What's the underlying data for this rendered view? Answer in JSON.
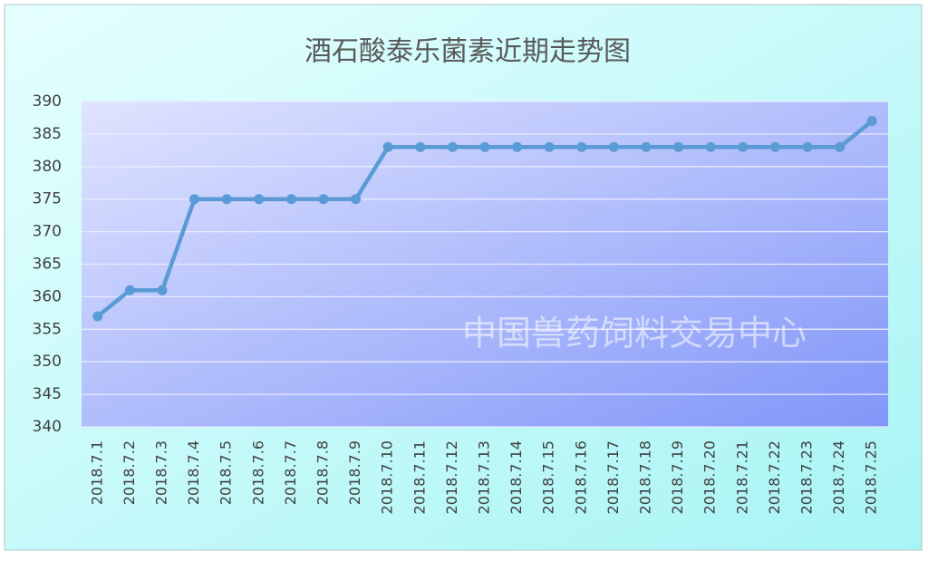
{
  "chart_data": {
    "type": "line",
    "title": "酒石酸泰乐菌素近期走势图",
    "categories": [
      "2018.7.1",
      "2018.7.2",
      "2018.7.3",
      "2018.7.4",
      "2018.7.5",
      "2018.7.6",
      "2018.7.7",
      "2018.7.8",
      "2018.7.9",
      "2018.7.10",
      "2018.7.11",
      "2018.7.12",
      "2018.7.13",
      "2018.7.14",
      "2018.7.15",
      "2018.7.16",
      "2018.7.17",
      "2018.7.18",
      "2018.7.19",
      "2018.7.20",
      "2018.7.21",
      "2018.7.22",
      "2018.7.23",
      "2018.7.24",
      "2018.7.25"
    ],
    "values": [
      357,
      361,
      361,
      375,
      375,
      375,
      375,
      375,
      375,
      383,
      383,
      383,
      383,
      383,
      383,
      383,
      383,
      383,
      383,
      383,
      383,
      383,
      383,
      383,
      387
    ],
    "color": "#5b9bd5",
    "ylim": [
      340,
      390
    ],
    "yticks": [
      340,
      345,
      350,
      355,
      360,
      365,
      370,
      375,
      380,
      385,
      390
    ],
    "grid": true,
    "annotation": "中国兽药饲料交易中心"
  }
}
